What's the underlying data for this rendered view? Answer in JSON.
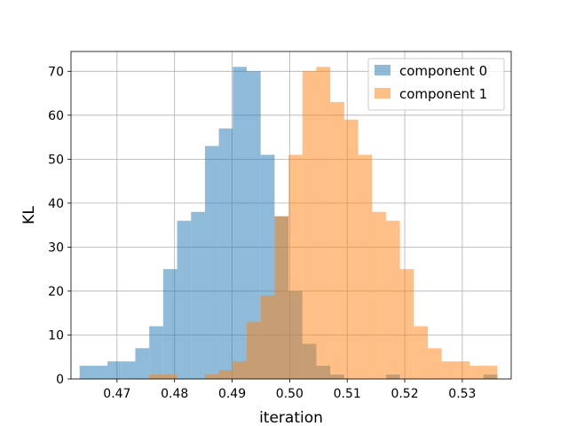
{
  "chart_data": {
    "type": "bar",
    "subtype": "histogram",
    "title": "",
    "xlabel": "iteration",
    "ylabel": "KL",
    "xlim": [
      0.462,
      0.5385
    ],
    "ylim": [
      0,
      74.5
    ],
    "xticks": [
      0.47,
      0.48,
      0.49,
      0.5,
      0.51,
      0.52,
      0.53
    ],
    "xtick_labels": [
      "0.47",
      "0.48",
      "0.49",
      "0.50",
      "0.51",
      "0.52",
      "0.53"
    ],
    "yticks": [
      0,
      10,
      20,
      30,
      40,
      50,
      60,
      70
    ],
    "ytick_labels": [
      "0",
      "10",
      "20",
      "30",
      "40",
      "50",
      "60",
      "70"
    ],
    "grid": true,
    "legend": {
      "position": "top-right"
    },
    "series": [
      {
        "name": "component 0",
        "color": "#1f77b4",
        "alpha": 0.5,
        "bin_start": 0.4635,
        "bin_width": 0.00242,
        "counts": [
          3,
          3,
          4,
          4,
          7,
          12,
          25,
          36,
          38,
          53,
          57,
          71,
          70,
          51,
          37,
          20,
          8,
          3,
          1,
          0,
          0,
          0,
          1,
          0,
          0,
          0,
          0,
          0,
          0,
          1
        ]
      },
      {
        "name": "component 1",
        "color": "#ff7f0e",
        "alpha": 0.5,
        "bin_start": 0.4635,
        "bin_width": 0.00242,
        "counts": [
          0,
          0,
          0,
          0,
          0,
          1,
          1,
          0,
          0,
          1,
          2,
          4,
          13,
          19,
          37,
          51,
          70,
          71,
          63,
          59,
          51,
          38,
          36,
          25,
          12,
          7,
          4,
          4,
          3,
          3
        ]
      }
    ]
  }
}
